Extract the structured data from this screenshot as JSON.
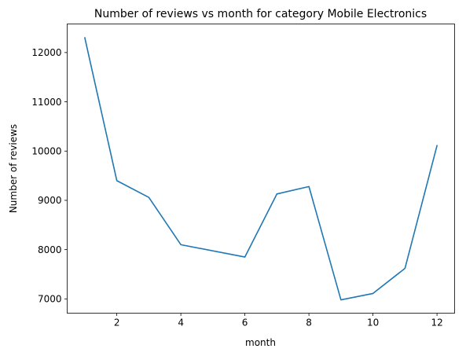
{
  "chart_data": {
    "type": "line",
    "title": "Number of reviews vs month for category Mobile Electronics",
    "xlabel": "month",
    "ylabel": "Number of reviews",
    "xlim": [
      0.45,
      12.55
    ],
    "ylim": [
      6710,
      12580
    ],
    "x_ticks": [
      2,
      4,
      6,
      8,
      10,
      12
    ],
    "y_ticks": [
      7000,
      8000,
      9000,
      10000,
      11000,
      12000
    ],
    "grid": false,
    "legend": "none",
    "series": [
      {
        "color": "#1f77b4",
        "x": [
          1,
          2,
          3,
          4,
          6,
          7,
          8,
          9,
          10,
          11,
          12
        ],
        "y": [
          12300,
          9400,
          9060,
          8100,
          7850,
          9130,
          9280,
          6980,
          7110,
          7620,
          10110
        ]
      }
    ]
  }
}
